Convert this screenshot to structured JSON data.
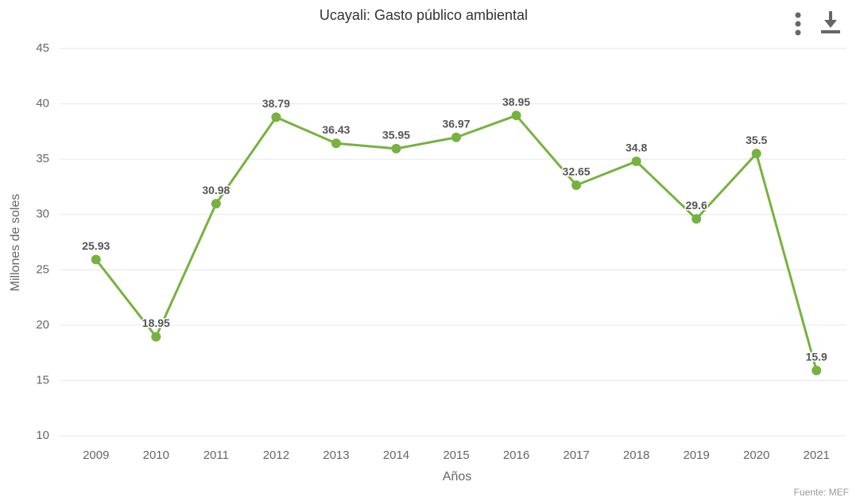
{
  "chart_data": {
    "type": "line",
    "title": "Ucayali: Gasto público ambiental",
    "x_label": "Años",
    "y_label": "Millones de soles",
    "credits": "Fuente: MEF",
    "categories": [
      "2009",
      "2010",
      "2011",
      "2012",
      "2013",
      "2014",
      "2015",
      "2016",
      "2017",
      "2018",
      "2019",
      "2020",
      "2021"
    ],
    "values": [
      25.93,
      18.95,
      30.98,
      38.79,
      36.43,
      35.95,
      36.97,
      38.95,
      32.65,
      34.8,
      29.6,
      35.5,
      15.9
    ],
    "color": "#77b23f",
    "ylim": [
      10,
      45
    ],
    "yticks": [
      10,
      15,
      20,
      25,
      30,
      35,
      40,
      45
    ],
    "grid": true
  }
}
